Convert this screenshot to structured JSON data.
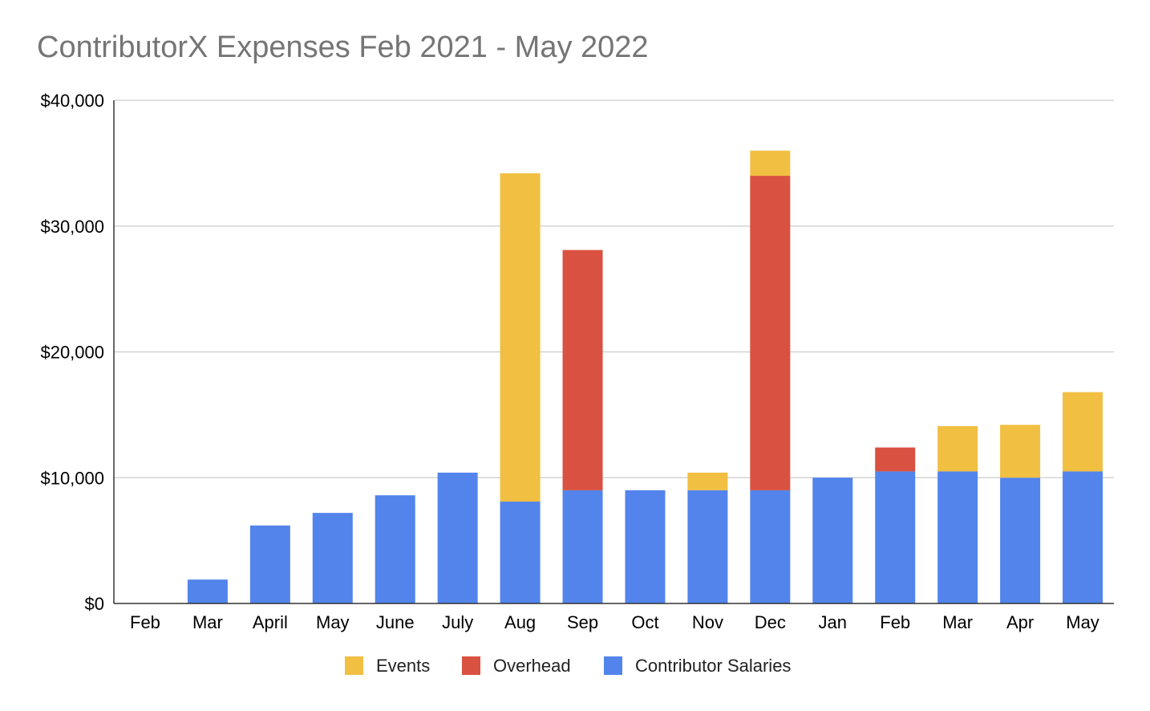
{
  "chart_data": {
    "type": "bar",
    "stacked": true,
    "title": "ContributorX Expenses Feb 2021 - May 2022",
    "xlabel": "",
    "ylabel": "",
    "categories": [
      "Feb",
      "Mar",
      "April",
      "May",
      "June",
      "July",
      "Aug",
      "Sep",
      "Oct",
      "Nov",
      "Dec",
      "Jan",
      "Feb",
      "Mar",
      "Apr",
      "May"
    ],
    "ylim": [
      0,
      40000
    ],
    "yticks": [
      0,
      10000,
      20000,
      30000,
      40000
    ],
    "ytick_labels": [
      "$0",
      "$10,000",
      "$20,000",
      "$30,000",
      "$40,000"
    ],
    "grid": true,
    "legend_position": "bottom",
    "series": [
      {
        "name": "Contributor Salaries",
        "color": "#5384ec",
        "values": [
          0,
          1900,
          6200,
          7200,
          8600,
          10400,
          8100,
          9000,
          9000,
          9000,
          9000,
          10000,
          10500,
          10500,
          10000,
          10500
        ]
      },
      {
        "name": "Overhead",
        "color": "#d95140",
        "values": [
          0,
          0,
          0,
          0,
          0,
          0,
          0,
          19100,
          0,
          0,
          25000,
          0,
          1900,
          0,
          0,
          0
        ]
      },
      {
        "name": "Events",
        "color": "#f1bf42",
        "values": [
          0,
          0,
          0,
          0,
          0,
          0,
          26100,
          0,
          0,
          1400,
          2000,
          0,
          0,
          3600,
          4200,
          6300
        ]
      }
    ],
    "legend_order": [
      "Events",
      "Overhead",
      "Contributor Salaries"
    ]
  }
}
